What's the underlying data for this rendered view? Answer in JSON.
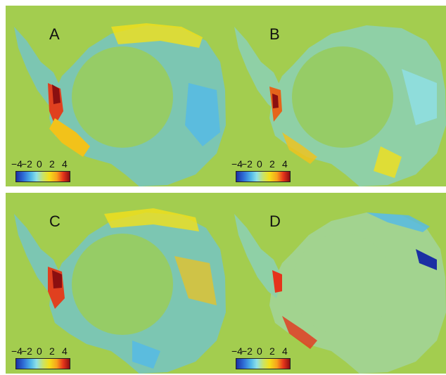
{
  "panels": [
    {
      "label": "A"
    },
    {
      "label": "B"
    },
    {
      "label": "C"
    },
    {
      "label": "D"
    }
  ],
  "colorbar": {
    "ticks": [
      "−4",
      "−2",
      "0",
      "2",
      "4"
    ],
    "colors": [
      "#1b2fa3",
      "#2f6fd8",
      "#52b9e8",
      "#8ee0e8",
      "#c8e36a",
      "#f2e01a",
      "#f7a21b",
      "#e5341b",
      "#8b0f10"
    ]
  },
  "colors": {
    "ocean": "#a3cd4f",
    "pole_hole": "#96cc66",
    "ice_base": "#7cc6b2"
  }
}
